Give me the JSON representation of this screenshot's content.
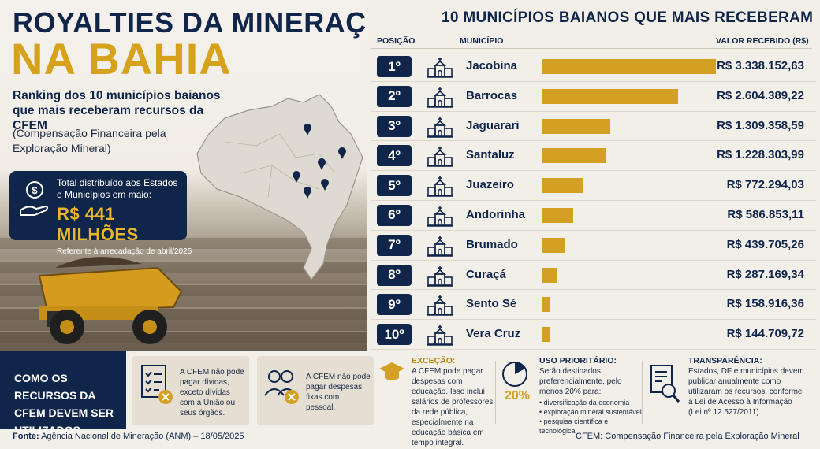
{
  "header": {
    "title_line1": "ROYALTIES DA MINERAÇÃO",
    "title_line2": "NA BAHIA",
    "subtitle": "Ranking dos 10 municípios baianos que mais receberam recursos da CFEM",
    "note": "(Compensação Financeira pela Exploração Mineral)"
  },
  "total": {
    "label": "Total distribuído aos Estados e Municípios em maio:",
    "amount": "R$ 441 MILHÕES",
    "reference": "Referente à arrecadação de abril/2025"
  },
  "ranking": {
    "title": "10 MUNICÍPIOS BAIANOS QUE MAIS RECEBERAM",
    "col_position": "POSIÇÃO",
    "col_municipality": "MUNICÍPIO",
    "col_value": "VALOR RECEBIDO (R$)"
  },
  "chart_data": {
    "type": "bar",
    "orientation": "horizontal",
    "title": "10 MUNICÍPIOS BAIANOS QUE MAIS RECEBERAM",
    "positions": [
      "1º",
      "2º",
      "3º",
      "4º",
      "5º",
      "6º",
      "7º",
      "8º",
      "9º",
      "10º"
    ],
    "categories": [
      "Jacobina",
      "Barrocas",
      "Jaguarari",
      "Santaluz",
      "Juazeiro",
      "Andorinha",
      "Brumado",
      "Curaçá",
      "Sento Sé",
      "Vera Cruz"
    ],
    "values": [
      3338152.63,
      2604389.22,
      1309358.59,
      1228303.99,
      772294.03,
      586853.11,
      439705.26,
      287169.34,
      158916.36,
      144709.72
    ],
    "value_labels": [
      "R$ 3.338.152,63",
      "R$ 2.604.389,22",
      "R$ 1.309.358,59",
      "R$ 1.228.303,99",
      "R$ 772.294,03",
      "R$ 586.853,11",
      "R$ 439.705,26",
      "R$ 287.169,34",
      "R$ 158.916,36",
      "R$ 144.709,72"
    ],
    "bar_color": "#d4a024"
  },
  "usage": {
    "heading": "COMO OS RECURSOS DA CFEM DEVEM SER UTILIZADOS",
    "card1": "A CFEM não pode pagar dívidas, exceto dívidas com a União ou seus órgãos.",
    "card2": "A CFEM não pode pagar despesas fixas com pessoal.",
    "card3_title": "EXCEÇÃO:",
    "card3": "A CFEM pode pagar despesas com educação. Isso inclui salários de professores da rede pública, especialmente na educação básica em tempo integral.",
    "card4_title": "USO PRIORITÁRIO:",
    "card4": "Serão destinados, preferencialmente, pelo menos 20% para:",
    "card4_percent": "20%",
    "card4_items": [
      "diversificação da economia",
      "exploração mineral sustentável",
      "pesquisa científica e tecnológica"
    ],
    "card5_title": "TRANSPARÊNCIA:",
    "card5": "Estados, DF e municípios devem publicar anualmente como utilizaram os recursos, conforme a Lei de Acesso à Informação (Lei nº 12.527/2011)."
  },
  "footer": {
    "source_label": "Fonte:",
    "source": "Agência Nacional de Mineração (ANM) – 18/05/2025",
    "right": "CFEM: Compensação Financeira pela Exploração Mineral"
  },
  "colors": {
    "navy": "#10254a",
    "gold": "#d4a024",
    "title_gold": "#d6a21b",
    "bg": "#f2efe9"
  }
}
